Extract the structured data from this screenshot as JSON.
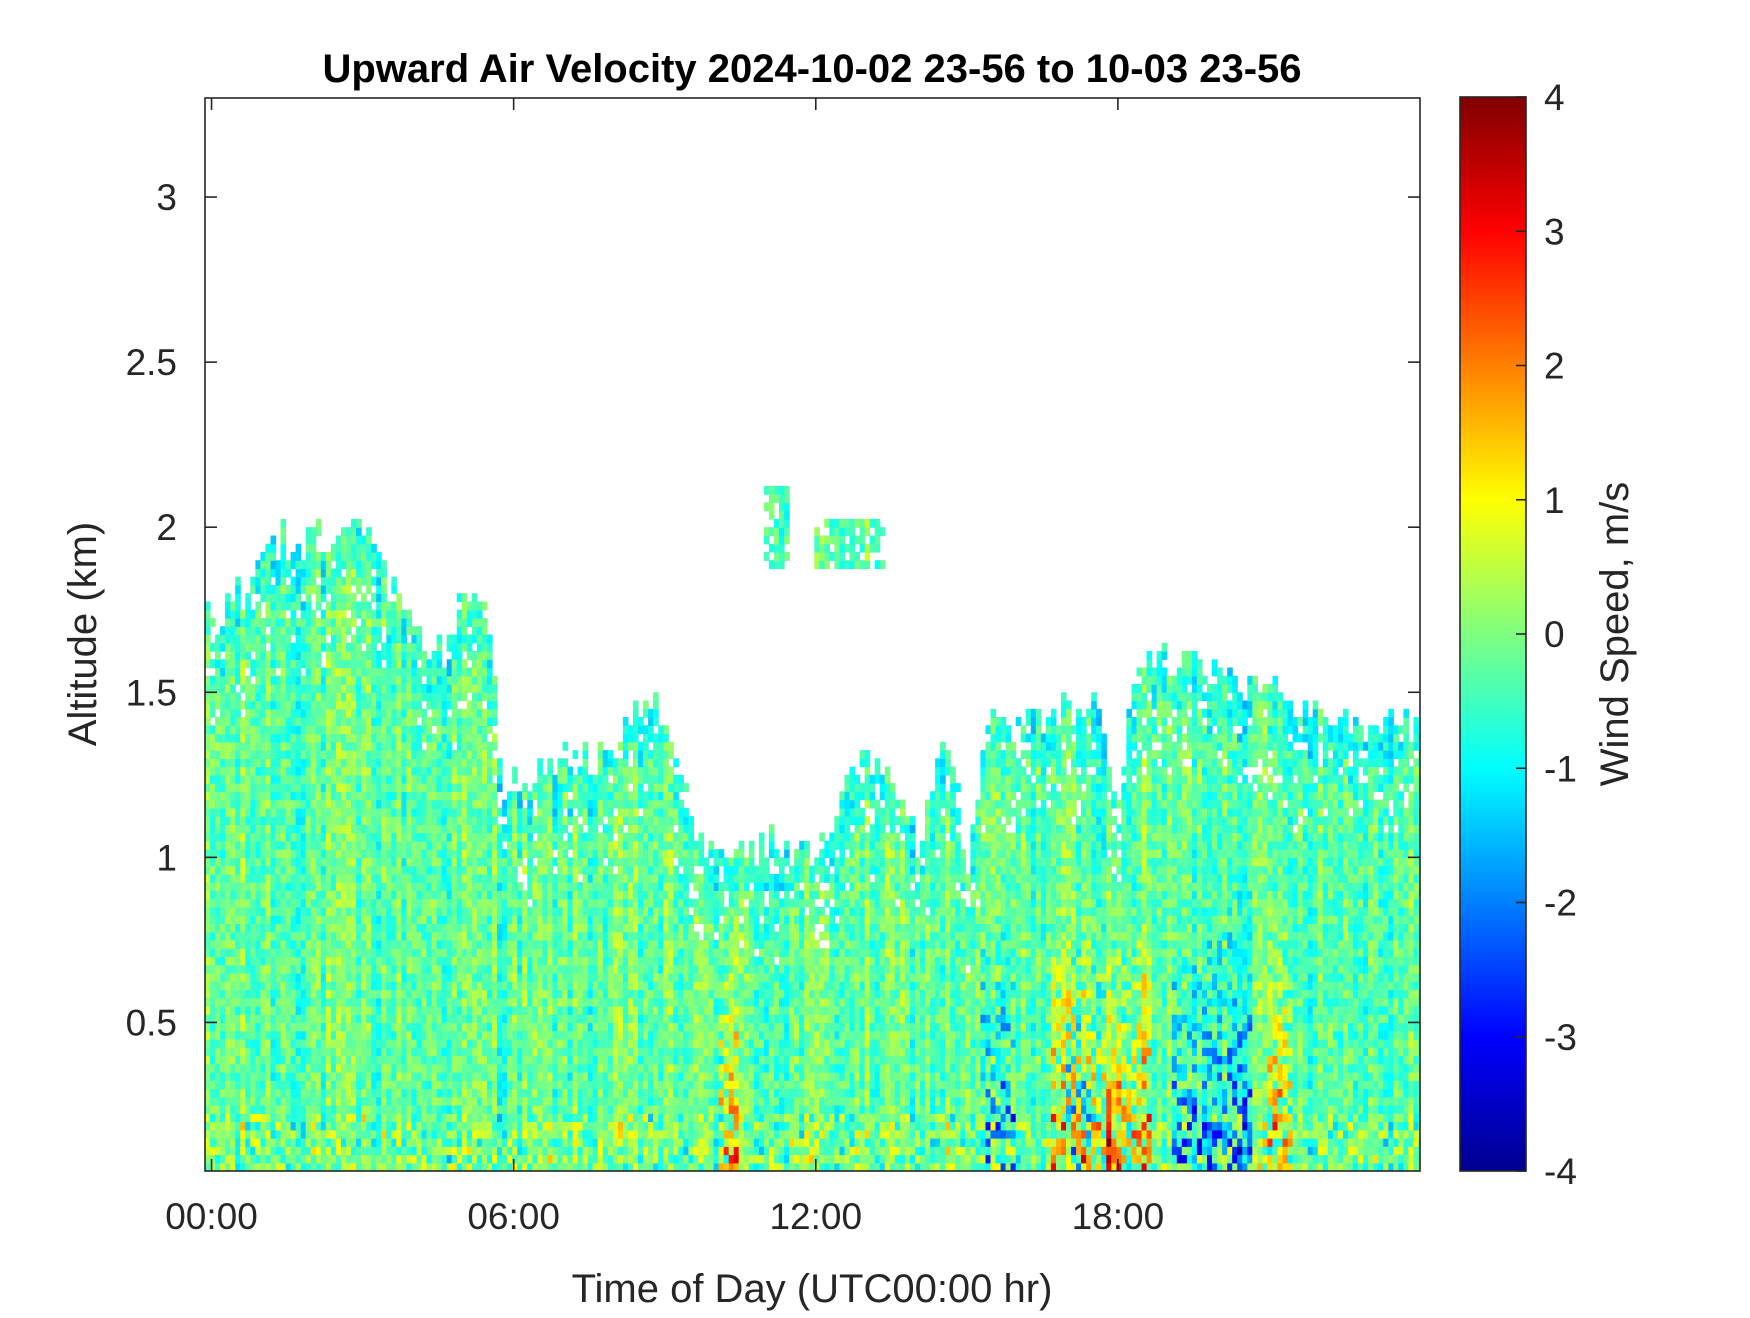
{
  "chart_data": {
    "type": "heatmap",
    "title": "Upward Air Velocity 2024-10-02 23-56 to 10-03 23-56",
    "xlabel": "Time of Day (UTC00:00 hr)",
    "ylabel": "Altitude (km)",
    "colorbar_label": "Wind Speed, m/s",
    "colormap": "jet",
    "x_ticks": [
      {
        "label": "00:00",
        "hour": 0
      },
      {
        "label": "06:00",
        "hour": 6
      },
      {
        "label": "12:00",
        "hour": 12
      },
      {
        "label": "18:00",
        "hour": 18
      }
    ],
    "y_ticks": [
      {
        "label": "0.5",
        "value": 0.5
      },
      {
        "label": "1",
        "value": 1.0
      },
      {
        "label": "1.5",
        "value": 1.5
      },
      {
        "label": "2",
        "value": 2.0
      },
      {
        "label": "2.5",
        "value": 2.5
      },
      {
        "label": "3",
        "value": 3.0
      }
    ],
    "colorbar_ticks": [
      {
        "label": "4",
        "value": 4
      },
      {
        "label": "3",
        "value": 3
      },
      {
        "label": "2",
        "value": 2
      },
      {
        "label": "1",
        "value": 1
      },
      {
        "label": "0",
        "value": 0
      },
      {
        "label": "-1",
        "value": -1
      },
      {
        "label": "-2",
        "value": -2
      },
      {
        "label": "-3",
        "value": -3
      },
      {
        "label": "-4",
        "value": -4
      }
    ],
    "xlim": [
      -0.13,
      24.0
    ],
    "ylim": [
      0.05,
      3.3
    ],
    "clim": [
      -4,
      4
    ],
    "grid": false,
    "data_top_profile": [
      {
        "hour": 0.0,
        "top_km": 1.7
      },
      {
        "hour": 0.5,
        "top_km": 1.8
      },
      {
        "hour": 1.0,
        "top_km": 1.95
      },
      {
        "hour": 1.5,
        "top_km": 1.95
      },
      {
        "hour": 2.0,
        "top_km": 1.95
      },
      {
        "hour": 2.5,
        "top_km": 1.98
      },
      {
        "hour": 3.0,
        "top_km": 1.95
      },
      {
        "hour": 3.5,
        "top_km": 1.8
      },
      {
        "hour": 4.0,
        "top_km": 1.7
      },
      {
        "hour": 4.5,
        "top_km": 1.6
      },
      {
        "hour": 5.0,
        "top_km": 1.8
      },
      {
        "hour": 5.5,
        "top_km": 1.7
      },
      {
        "hour": 5.7,
        "top_km": 1.2
      },
      {
        "hour": 6.0,
        "top_km": 1.22
      },
      {
        "hour": 7.0,
        "top_km": 1.27
      },
      {
        "hour": 8.0,
        "top_km": 1.35
      },
      {
        "hour": 8.7,
        "top_km": 1.5
      },
      {
        "hour": 9.5,
        "top_km": 1.12
      },
      {
        "hour": 10.0,
        "top_km": 0.98
      },
      {
        "hour": 10.5,
        "top_km": 1.0
      },
      {
        "hour": 11.2,
        "top_km": 1.05
      },
      {
        "hour": 12.0,
        "top_km": 1.0
      },
      {
        "hour": 12.7,
        "top_km": 1.3
      },
      {
        "hour": 13.3,
        "top_km": 1.25
      },
      {
        "hour": 14.0,
        "top_km": 1.05
      },
      {
        "hour": 14.5,
        "top_km": 1.4
      },
      {
        "hour": 15.0,
        "top_km": 0.95
      },
      {
        "hour": 15.3,
        "top_km": 1.38
      },
      {
        "hour": 16.0,
        "top_km": 1.4
      },
      {
        "hour": 16.5,
        "top_km": 1.42
      },
      {
        "hour": 17.0,
        "top_km": 1.45
      },
      {
        "hour": 17.5,
        "top_km": 1.5
      },
      {
        "hour": 18.0,
        "top_km": 1.1
      },
      {
        "hour": 18.3,
        "top_km": 1.62
      },
      {
        "hour": 19.0,
        "top_km": 1.58
      },
      {
        "hour": 20.0,
        "top_km": 1.55
      },
      {
        "hour": 21.0,
        "top_km": 1.5
      },
      {
        "hour": 22.0,
        "top_km": 1.42
      },
      {
        "hour": 23.0,
        "top_km": 1.38
      },
      {
        "hour": 24.0,
        "top_km": 1.37
      }
    ],
    "isolated_patches": [
      {
        "hour_start": 10.9,
        "hour_end": 11.4,
        "alt_min_km": 1.85,
        "alt_max_km": 2.12
      },
      {
        "hour_start": 11.9,
        "hour_end": 13.3,
        "alt_min_km": 1.85,
        "alt_max_km": 2.02
      }
    ],
    "notable_features": [
      {
        "description": "positive updraft streaks (yellow-red) near 17:00-18:30 and 21:00-21:30 below 1 km",
        "value_range": [
          1,
          3.5
        ]
      },
      {
        "description": "downdraft streaks (blue) near 16:30-17:30 and 19:00-20:30 below 0.5 km",
        "value_range": [
          -3,
          -1.5
        ]
      }
    ]
  }
}
